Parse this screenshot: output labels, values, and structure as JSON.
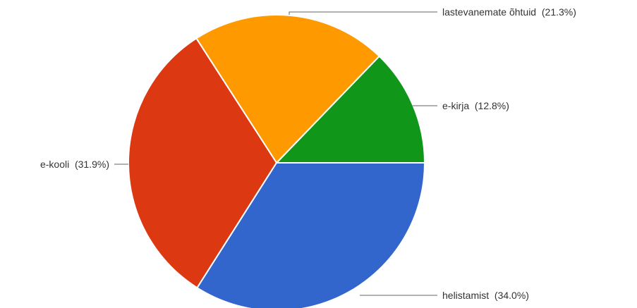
{
  "chart_data": {
    "type": "pie",
    "title": "",
    "slices": [
      {
        "name": "e-kirja",
        "label": "e-kirja  (12.8%)",
        "value": 12.8,
        "color": "#109618"
      },
      {
        "name": "helistamist",
        "label": "helistamist  (34.0%)",
        "value": 34.0,
        "color": "#3366cc"
      },
      {
        "name": "e-kooli",
        "label": "e-kooli  (31.9%)",
        "value": 31.9,
        "color": "#dc3912"
      },
      {
        "name": "lastevanemate õhtuid",
        "label": "lastevanemate õhtuid  (21.3%)",
        "value": 21.3,
        "color": "#ff9900"
      }
    ]
  }
}
